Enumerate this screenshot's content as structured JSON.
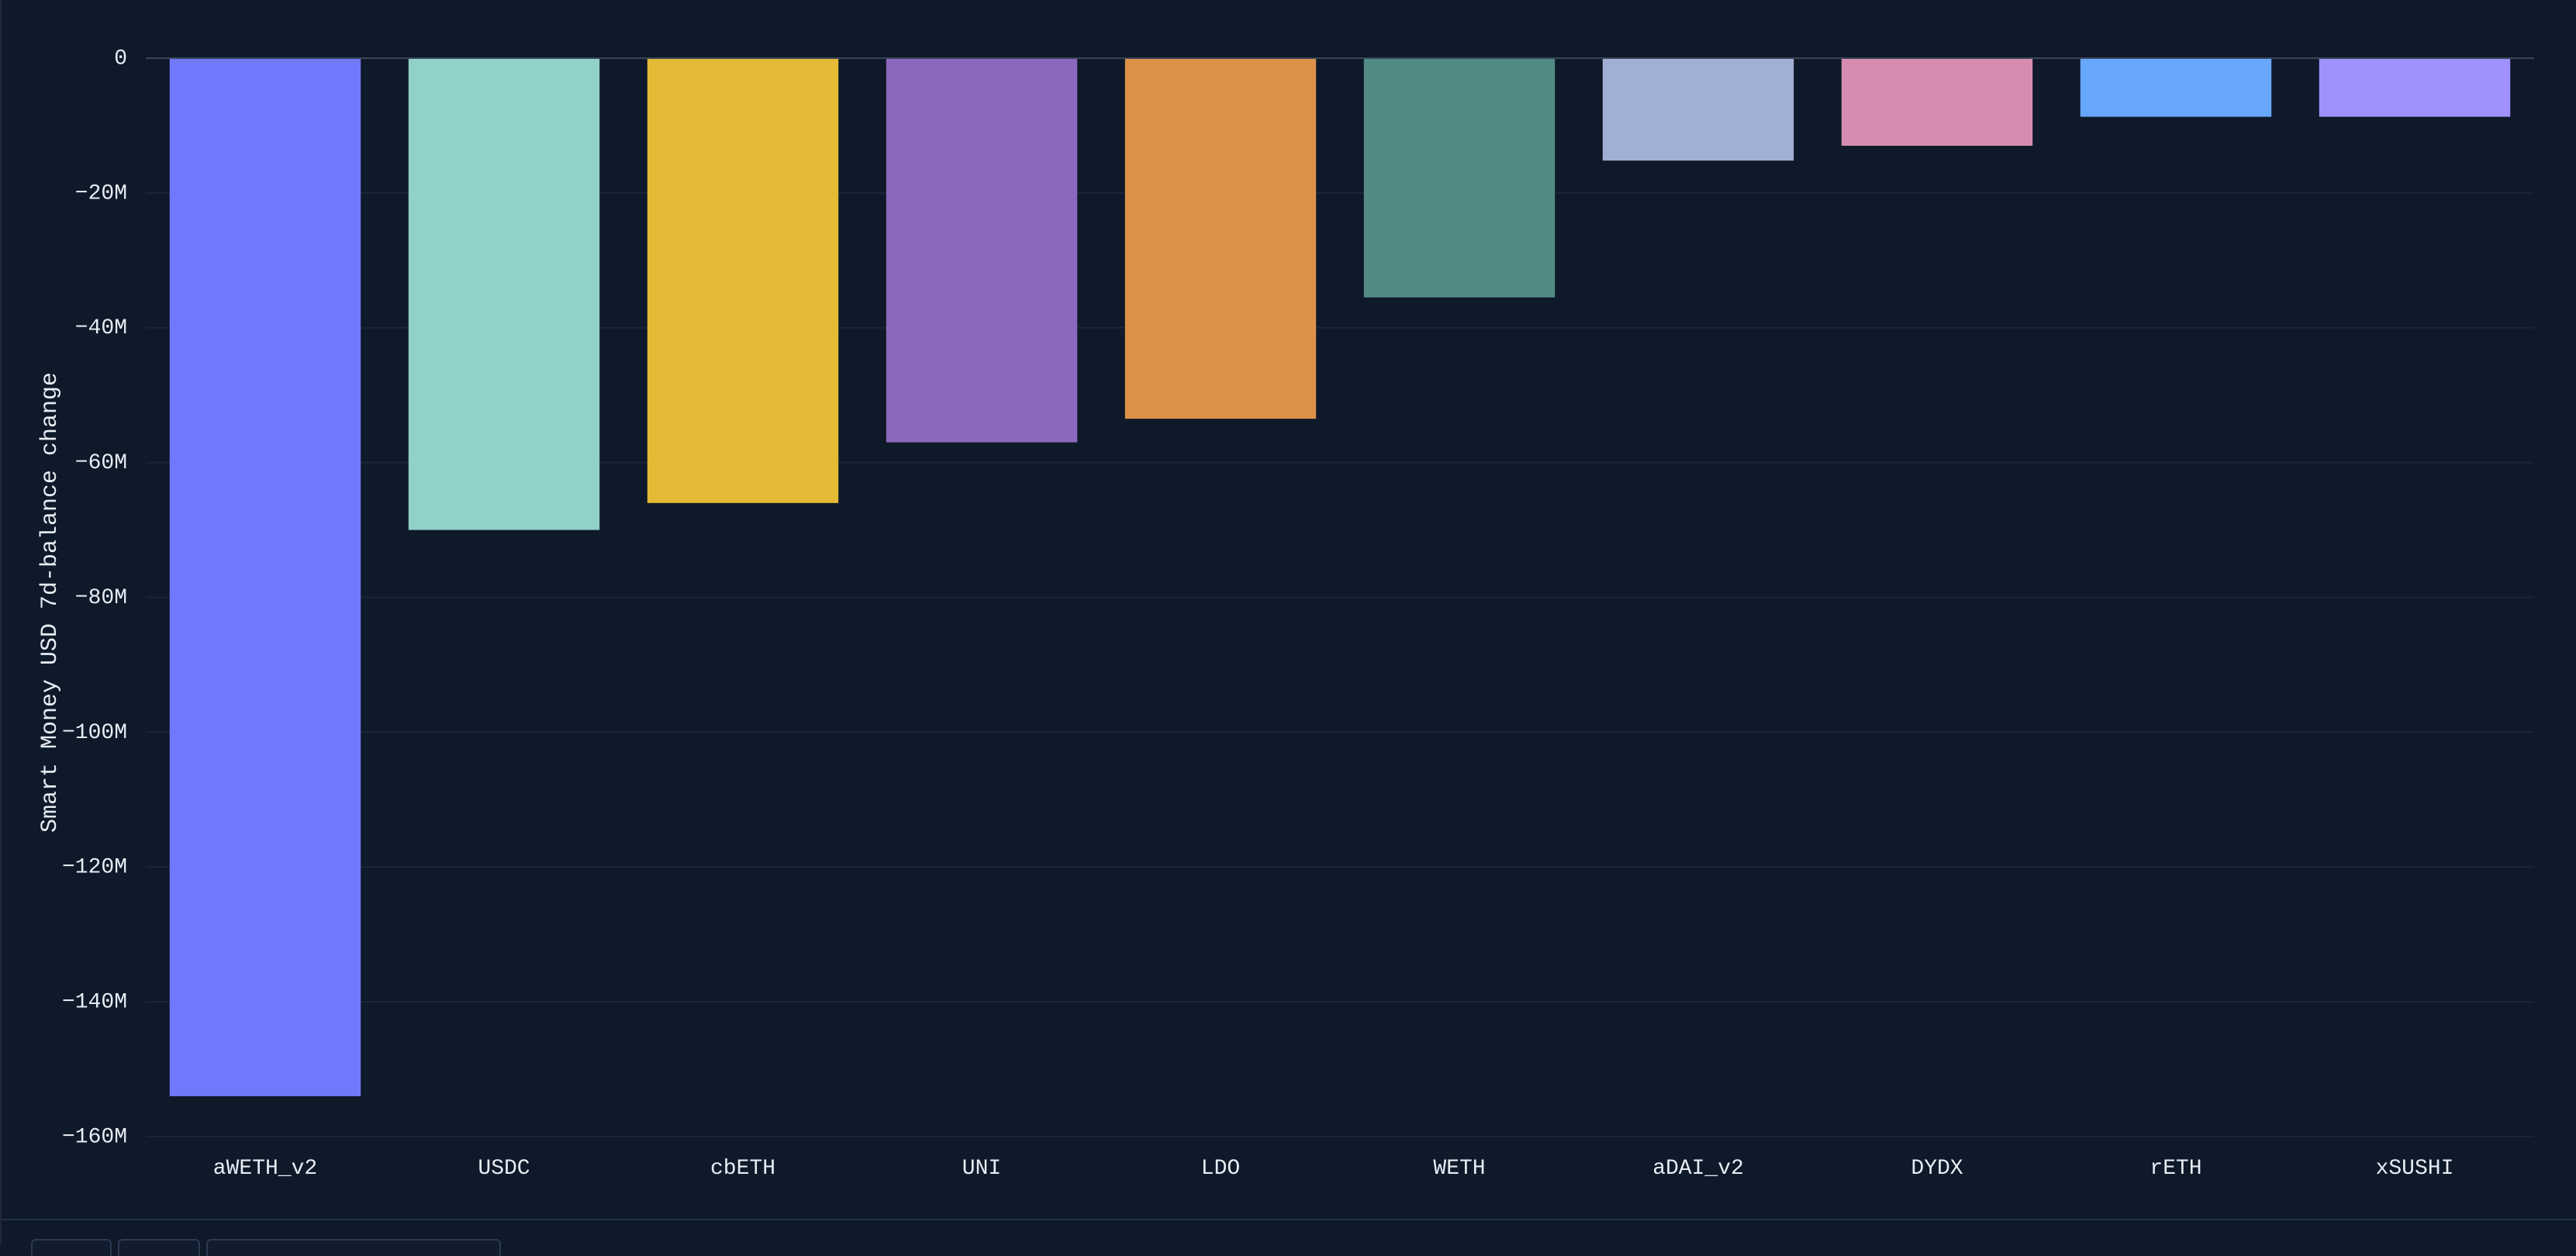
{
  "chart_data": {
    "type": "bar",
    "title": "",
    "xlabel": "",
    "ylabel": "Smart Money USD 7d-balance change",
    "ylim": [
      -160000000,
      0
    ],
    "yticks": [
      0,
      -20000000,
      -40000000,
      -60000000,
      -80000000,
      -100000000,
      -120000000,
      -140000000,
      -160000000
    ],
    "ytick_labels": [
      "0",
      "−20M",
      "−40M",
      "−60M",
      "−80M",
      "−100M",
      "−120M",
      "−140M",
      "−160M"
    ],
    "grid": true,
    "legend": "none",
    "categories": [
      "aWETH_v2",
      "USDC",
      "cbETH",
      "UNI",
      "LDO",
      "WETH",
      "aDAI_v2",
      "DYDX",
      "rETH",
      "xSUSHI"
    ],
    "values": [
      -154000000,
      -70000000,
      -66000000,
      -57000000,
      -53500000,
      -35500000,
      -15200000,
      -13000000,
      -8700000,
      -8700000
    ],
    "colors": [
      "#7079fc",
      "#91d1c9",
      "#e3b935",
      "#8c68bc",
      "#dc914a",
      "#528a86",
      "#a1afd4",
      "#d68cb0",
      "#67a7fb",
      "#a092fc"
    ]
  },
  "theme": {
    "background": "#0e1929",
    "gridline": "#1a2637",
    "zeroline": "#3a4658",
    "text": "#e8edf3"
  }
}
